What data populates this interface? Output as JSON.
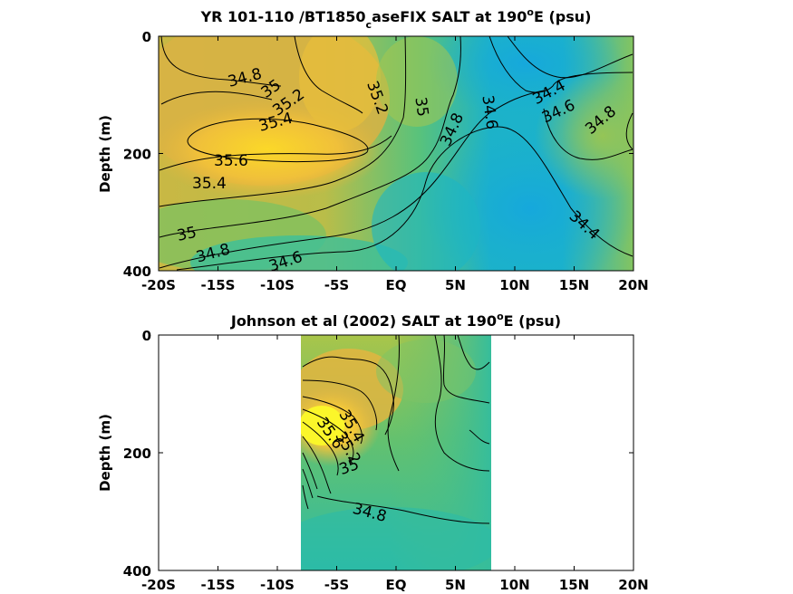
{
  "chart_data": [
    {
      "type": "contour",
      "title": "YR 101-110 /BT1850",
      "title_sub": "c",
      "title_rest": "aseFIX SALT at 190",
      "title_sup": "o",
      "title_end": "E (psu)",
      "ylabel": "Depth (m)",
      "xlim": [
        -20,
        20
      ],
      "ylim": [
        0,
        400
      ],
      "x_ticks": [
        "-20S",
        "-15S",
        "-10S",
        "-5S",
        "EQ",
        "5N",
        "10N",
        "15N",
        "20N"
      ],
      "y_ticks": [
        "0",
        "200",
        "400"
      ],
      "contour_labels": [
        "34.8",
        "35",
        "35.2",
        "35.4",
        "35.6",
        "35.4",
        "35",
        "34.8",
        "34.6",
        "35.2",
        "35",
        "34.8",
        "34.6",
        "34.4",
        "34.6",
        "34.8",
        "34.4"
      ],
      "colors": {
        "high": "#f9d62a",
        "mid": "#8cc65a",
        "low": "#17aed4"
      }
    },
    {
      "type": "contour",
      "title": "Johnson et al (2002) SALT at 190",
      "title_sup": "o",
      "title_end": "E (psu)",
      "ylabel": "Depth (m)",
      "xlim": [
        -20,
        20
      ],
      "ylim": [
        0,
        400
      ],
      "data_xrange": [
        -8,
        8
      ],
      "x_ticks": [
        "-20S",
        "-15S",
        "-10S",
        "-5S",
        "EQ",
        "5N",
        "10N",
        "15N",
        "20N"
      ],
      "y_ticks": [
        "0",
        "200",
        "400"
      ],
      "contour_labels": [
        "35.4",
        "35.6",
        "35.2",
        "35",
        "34.8"
      ],
      "colors": {
        "high": "#f6f12a",
        "mid": "#a6c84c",
        "low": "#2cbcaa"
      }
    }
  ]
}
